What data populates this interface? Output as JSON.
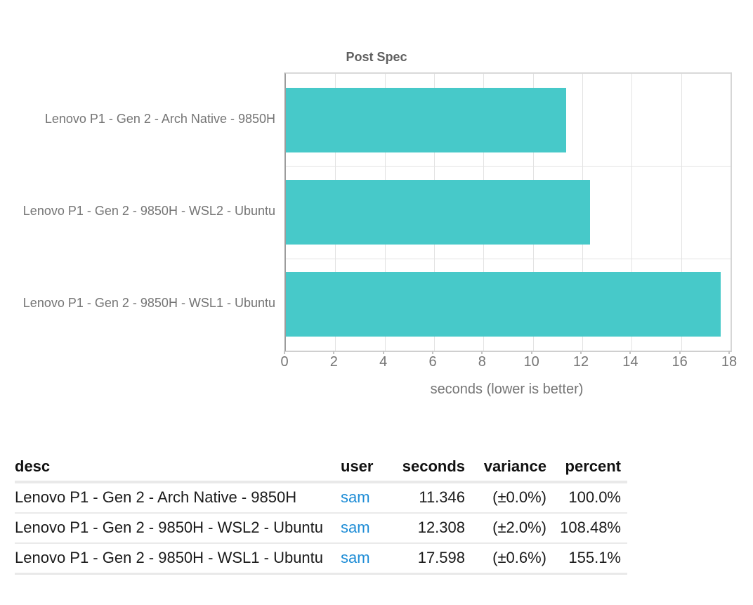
{
  "chart_data": {
    "type": "bar",
    "orientation": "horizontal",
    "title": "Post Spec",
    "xlabel": "seconds (lower is better)",
    "categories": [
      "Lenovo P1 - Gen 2 - Arch Native - 9850H",
      "Lenovo P1 - Gen 2 - 9850H - WSL2 - Ubuntu",
      "Lenovo P1 - Gen 2 - 9850H - WSL1 - Ubuntu"
    ],
    "values": [
      11.346,
      12.308,
      17.598
    ],
    "xlim": [
      0,
      18
    ],
    "xticks": [
      0,
      2,
      4,
      6,
      8,
      10,
      12,
      14,
      16,
      18
    ],
    "grid": true,
    "legend": [],
    "bar_color": "#47c9c9"
  },
  "table": {
    "headers": [
      "desc",
      "user",
      "seconds",
      "variance",
      "percent"
    ],
    "rows": [
      [
        "Lenovo P1 - Gen 2 - Arch Native - 9850H",
        "sam",
        "11.346",
        "(±0.0%)",
        "100.0%"
      ],
      [
        "Lenovo P1 - Gen 2 - 9850H - WSL2 - Ubuntu",
        "sam",
        "12.308",
        "(±2.0%)",
        "108.48%"
      ],
      [
        "Lenovo P1 - Gen 2 - 9850H - WSL1 - Ubuntu",
        "sam",
        "17.598",
        "(±0.6%)",
        "155.1%"
      ]
    ],
    "link_color": "#1f8dd6"
  }
}
